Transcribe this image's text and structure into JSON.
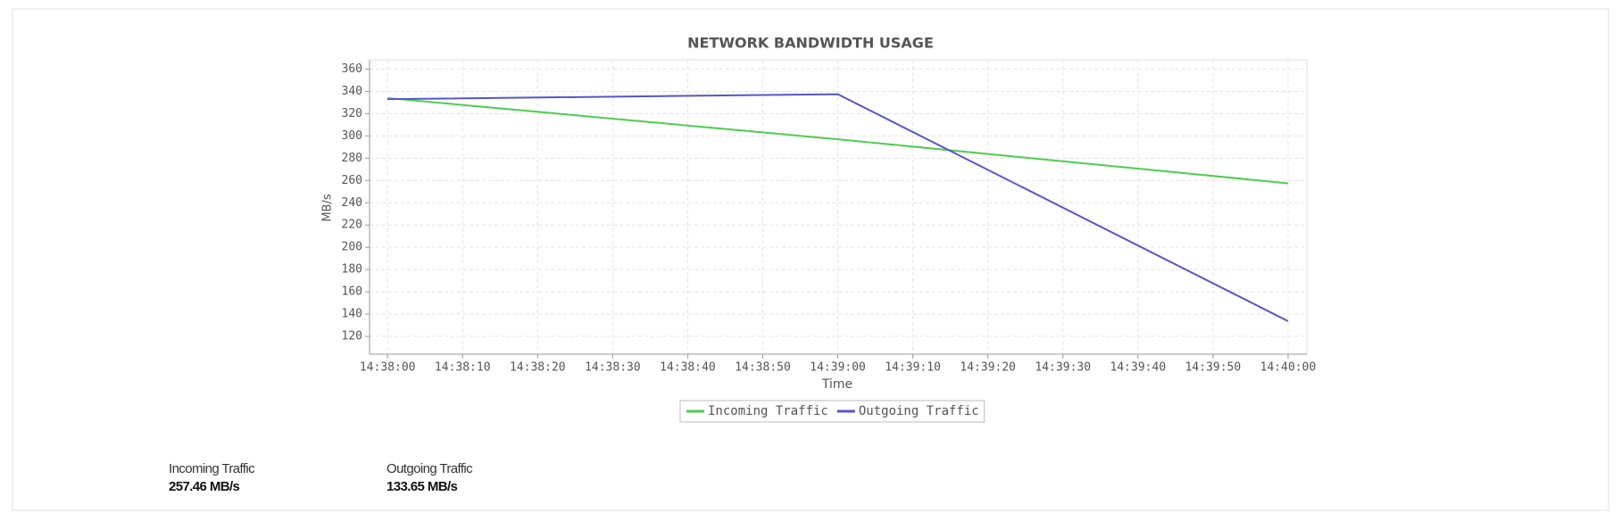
{
  "chart_data": {
    "type": "line",
    "title": "NETWORK BANDWIDTH USAGE",
    "x_label": "Time",
    "y_label": "MB/s",
    "x": [
      "14:38:00",
      "14:39:00",
      "14:40:00"
    ],
    "series": [
      {
        "name": "Incoming Traffic",
        "color": "#4fcc4f",
        "values": [
          334,
          297,
          257.46
        ]
      },
      {
        "name": "Outgoing Traffic",
        "color": "#5555cc",
        "values": [
          333,
          337.5,
          133.65
        ]
      }
    ],
    "xlim": [
      "14:37:57.6",
      "14:40:02.5"
    ],
    "xticks": [
      "14:38:00",
      "14:38:10",
      "14:38:20",
      "14:38:30",
      "14:38:40",
      "14:38:50",
      "14:39:00",
      "14:39:10",
      "14:39:20",
      "14:39:30",
      "14:39:40",
      "14:39:50",
      "14:40:00"
    ],
    "ylim": [
      104,
      368.4
    ],
    "yticks": [
      120,
      140,
      160,
      180,
      200,
      220,
      240,
      260,
      280,
      300,
      320,
      340,
      360
    ],
    "grid": true
  },
  "stats": [
    {
      "label": "Incoming Traffic",
      "value": "257.46 MB/s"
    },
    {
      "label": "Outgoing Traffic",
      "value": "133.65 MB/s"
    }
  ]
}
